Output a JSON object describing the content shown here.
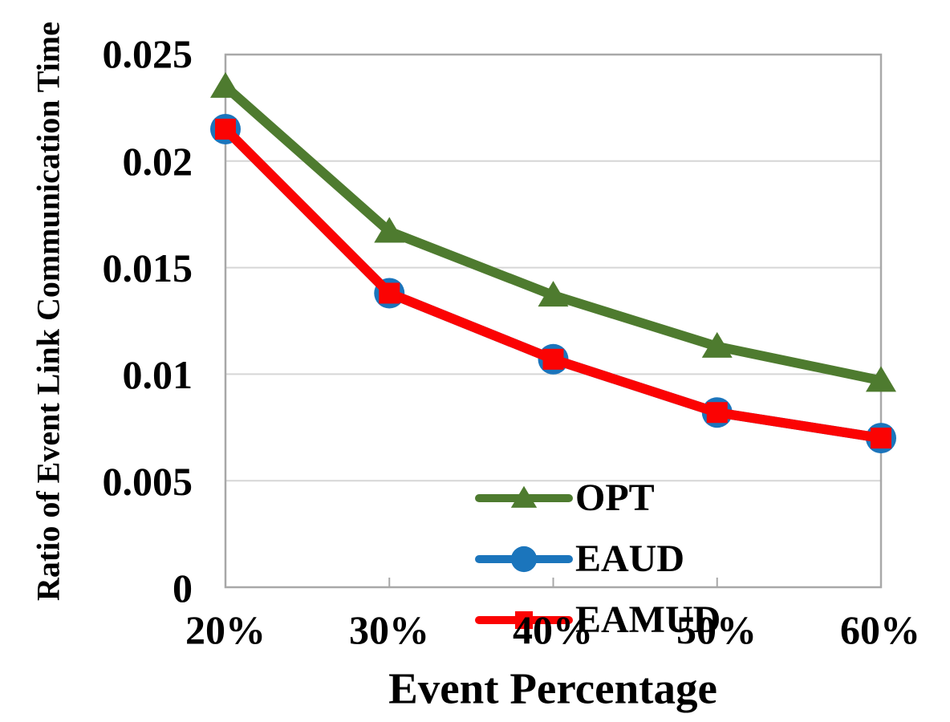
{
  "chart_data": {
    "type": "line",
    "title": "",
    "xlabel": "Event Percentage",
    "ylabel": "Ratio of Event Link Communication Time",
    "categories": [
      "20%",
      "30%",
      "40%",
      "50%",
      "60%"
    ],
    "ylim": [
      0,
      0.025
    ],
    "y_tick_interval": 0.005,
    "y_tick_labels": [
      "0.025",
      "0.02",
      "0.015",
      "0.01",
      "0.005",
      "0"
    ],
    "grid": true,
    "legend_position": "inside-lower-left",
    "series": [
      {
        "name": "OPT",
        "marker": "triangle",
        "color": "#4e7b2f",
        "values": [
          0.0235,
          0.0167,
          0.0137,
          0.0113,
          0.0097
        ]
      },
      {
        "name": "EAUD",
        "marker": "circle",
        "color": "#1b75bc",
        "values": [
          0.0215,
          0.0138,
          0.0107,
          0.0082,
          0.007
        ]
      },
      {
        "name": "EAMUD",
        "marker": "square",
        "color": "#fb0303",
        "values": [
          0.0215,
          0.0138,
          0.0107,
          0.0082,
          0.007
        ]
      }
    ]
  },
  "colors": {
    "grid": "#d6d6d6",
    "axis": "#a8a8a8",
    "text": "#000000",
    "background": "#ffffff"
  }
}
